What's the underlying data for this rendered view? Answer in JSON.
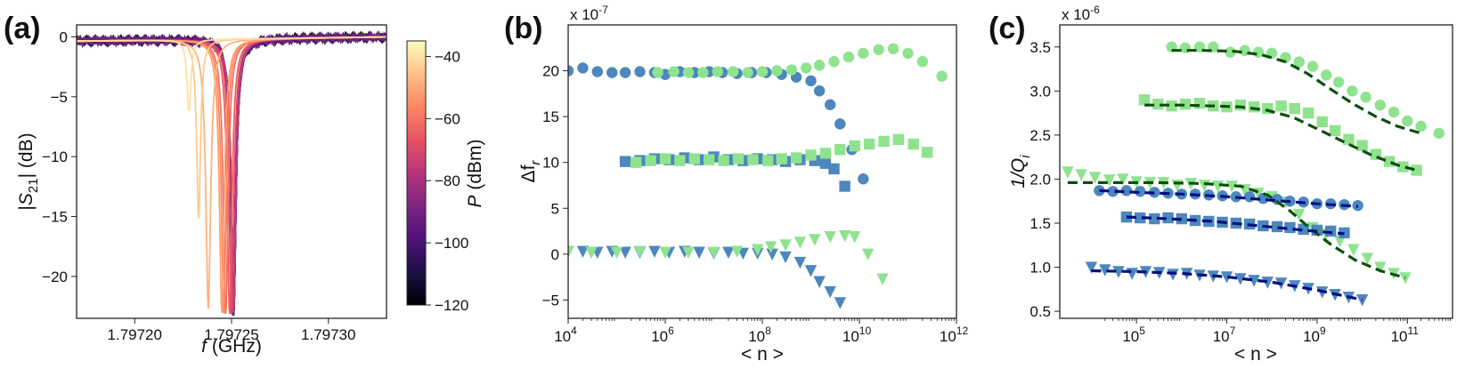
{
  "figure": {
    "panels": [
      {
        "id": "a",
        "label": "(a)"
      },
      {
        "id": "b",
        "label": "(b)",
        "multiplier": "x 10-7"
      },
      {
        "id": "c",
        "label": "(c)",
        "multiplier": "x 10-6"
      }
    ]
  },
  "colors": {
    "dark_blue": "#000f80",
    "steel_blue": "#4c87bd",
    "light_green": "#8fe38f",
    "dash_green": "#0d4f0d"
  },
  "chart_data": [
    {
      "panel": "a",
      "type": "line",
      "xlabel": "f (GHz)",
      "ylabel": "|S21| (dB)",
      "xlim": [
        1.79717,
        1.79733
      ],
      "ylim": [
        -23.5,
        1
      ],
      "x_ticks": [
        "1.79720",
        "1.79725",
        "1.79730"
      ],
      "y_ticks": [
        "0",
        "−5",
        "−10",
        "−15",
        "−20"
      ],
      "colorbar": {
        "label": "P (dBm)",
        "range": [
          -120,
          -35
        ],
        "ticks": [
          "−40",
          "−60",
          "−80",
          "−100",
          "−120"
        ],
        "colormap": "magma"
      },
      "series": [
        {
          "power": -120,
          "f0": 1.797251,
          "depth": -22.9,
          "width": 1.5e-06
        },
        {
          "power": -115,
          "f0": 1.797251,
          "depth": -22.9,
          "width": 1.5e-06
        },
        {
          "power": -110,
          "f0": 1.797251,
          "depth": -22.9,
          "width": 1.5e-06
        },
        {
          "power": -105,
          "f0": 1.797251,
          "depth": -22.9,
          "width": 1.5e-06
        },
        {
          "power": -100,
          "f0": 1.797251,
          "depth": -22.9,
          "width": 1.5e-06
        },
        {
          "power": -95,
          "f0": 1.797251,
          "depth": -22.9,
          "width": 1.5e-06
        },
        {
          "power": -90,
          "f0": 1.797251,
          "depth": -22.9,
          "width": 1.5e-06
        },
        {
          "power": -85,
          "f0": 1.797251,
          "depth": -22.9,
          "width": 1.5e-06
        },
        {
          "power": -80,
          "f0": 1.797251,
          "depth": -22.9,
          "width": 1.5e-06
        },
        {
          "power": -75,
          "f0": 1.797251,
          "depth": -22.9,
          "width": 1.5e-06
        },
        {
          "power": -70,
          "f0": 1.79725,
          "depth": -23.0,
          "width": 1.5e-06
        },
        {
          "power": -65,
          "f0": 1.797249,
          "depth": -23.0,
          "width": 1.5e-06
        },
        {
          "power": -60,
          "f0": 1.797247,
          "depth": -23.0,
          "width": 1.5e-06
        },
        {
          "power": -56,
          "f0": 1.797246,
          "depth": -22.9,
          "width": 1.5e-06
        },
        {
          "power": -52,
          "f0": 1.797245,
          "depth": -22.9,
          "width": 1.5e-06
        },
        {
          "power": -48,
          "f0": 1.797238,
          "depth": -22.5,
          "width": 1.5e-06
        },
        {
          "power": -44,
          "f0": 1.797233,
          "depth": -15.0,
          "width": 1.2e-06
        },
        {
          "power": -40,
          "f0": 1.797228,
          "depth": -6.0,
          "width": 1.2e-06
        }
      ]
    },
    {
      "panel": "b",
      "type": "scatter",
      "xlabel": "< n >",
      "ylabel": "Δf",
      "ylabel_sub": "r",
      "xscale": "log",
      "xlim": [
        10000,
        1000000000000
      ],
      "ylim": [
        -7,
        25
      ],
      "x_ticks": [
        {
          "base": "10",
          "exp": "4"
        },
        {
          "base": "10",
          "exp": "6"
        },
        {
          "base": "10",
          "exp": "8"
        },
        {
          "base": "10",
          "exp": "10"
        },
        {
          "base": "10",
          "exp": "12"
        }
      ],
      "y_ticks": [
        "−5",
        "0",
        "5",
        "10",
        "15",
        "20"
      ],
      "series": [
        {
          "color": "steel_blue",
          "marker": "circle",
          "x": [
            10000,
            20000,
            40000,
            80000,
            150000,
            300000,
            600000,
            1000000,
            2000000,
            4000000,
            8000000,
            15000000,
            30000000,
            60000000,
            120000000,
            250000000,
            500000000,
            1000000000,
            1500000000,
            2500000000,
            4000000000,
            7000000000,
            12000000000
          ],
          "y": [
            20,
            20.3,
            19.9,
            19.8,
            19.8,
            19.9,
            19.8,
            19.6,
            19.9,
            19.8,
            19.9,
            19.8,
            19.7,
            19.8,
            19.8,
            19.6,
            19.3,
            18.9,
            17.8,
            16.3,
            14.2,
            11.4,
            8.2
          ]
        },
        {
          "color": "light_green",
          "marker": "circle",
          "x": [
            700000,
            1500000,
            3000000,
            6000000,
            12000000,
            25000000,
            50000000,
            100000000,
            200000000,
            400000000,
            800000000,
            1500000000,
            3000000000,
            6000000000,
            12000000000,
            25000000000,
            50000000000,
            100000000000,
            200000000000,
            500000000000
          ],
          "y": [
            19.8,
            19.9,
            19.8,
            19.8,
            19.9,
            19.9,
            19.8,
            19.9,
            20.0,
            20.1,
            20.3,
            20.6,
            21.0,
            21.5,
            21.9,
            22.3,
            22.4,
            21.9,
            21.0,
            19.4
          ]
        },
        {
          "color": "steel_blue",
          "marker": "square",
          "x": [
            150000,
            300000,
            600000,
            1200000,
            2500000,
            5000000,
            10000000,
            20000000,
            40000000,
            80000000,
            160000000,
            300000000,
            600000000,
            1200000000,
            2000000000,
            3000000000,
            5000000000
          ],
          "y": [
            10.1,
            10.2,
            10.4,
            10.3,
            10.5,
            10.3,
            10.6,
            10.3,
            10.2,
            10.4,
            10.3,
            10.1,
            10.3,
            10.2,
            9.9,
            9.3,
            7.4
          ]
        },
        {
          "color": "light_green",
          "marker": "square",
          "x": [
            250000,
            500000,
            1000000,
            2000000,
            4000000,
            8000000,
            16000000,
            32000000,
            64000000,
            130000000,
            250000000,
            500000000,
            1000000000,
            2000000000,
            4000000000,
            8000000000,
            16000000000,
            32000000000,
            64000000000,
            130000000000,
            250000000000
          ],
          "y": [
            10.0,
            10.2,
            10.4,
            10.2,
            10.4,
            10.3,
            10.2,
            10.4,
            10.3,
            10.2,
            10.4,
            10.5,
            10.8,
            11.0,
            11.4,
            11.8,
            12.0,
            12.3,
            12.5,
            12.0,
            11.1
          ]
        },
        {
          "color": "steel_blue",
          "marker": "triangle",
          "x": [
            10000,
            20000,
            40000,
            80000,
            150000,
            300000,
            600000,
            1200000,
            2500000,
            5000000,
            10000000,
            20000000,
            40000000,
            80000000,
            160000000,
            300000000,
            600000000,
            1000000000,
            1500000000,
            2500000000,
            4000000000
          ],
          "y": [
            0.3,
            0.3,
            0.2,
            0.3,
            0.2,
            0.2,
            0.3,
            0.2,
            0.3,
            0.2,
            0.1,
            0.2,
            0.1,
            0.1,
            0.0,
            -0.3,
            -0.9,
            -1.8,
            -3.0,
            -4.1,
            -5.3
          ]
        },
        {
          "color": "light_green",
          "marker": "triangle",
          "x": [
            10000,
            30000,
            100000,
            300000,
            1000000,
            3000000,
            10000000,
            30000000,
            80000000,
            150000000,
            300000000,
            600000000,
            1200000000,
            2500000000,
            5000000000,
            8000000000,
            15000000000,
            30000000000
          ],
          "y": [
            0.3,
            0.2,
            0.2,
            0.3,
            0.2,
            0.2,
            0.2,
            0.3,
            0.5,
            0.8,
            1.0,
            1.3,
            1.6,
            1.9,
            2.0,
            1.9,
            0.0,
            -2.7
          ]
        }
      ]
    },
    {
      "panel": "c",
      "type": "scatter",
      "xlabel": "< n >",
      "ylabel": "1/Q",
      "ylabel_sub": "i",
      "xscale": "log",
      "xlim": [
        2000,
        1000000000000
      ],
      "ylim": [
        0.42,
        3.75
      ],
      "x_ticks": [
        {
          "base": "10",
          "exp": "5"
        },
        {
          "base": "10",
          "exp": "7"
        },
        {
          "base": "10",
          "exp": "9"
        },
        {
          "base": "10",
          "exp": "11"
        }
      ],
      "y_ticks": [
        "0.5",
        "1.0",
        "1.5",
        "2.0",
        "2.5",
        "3.0",
        "3.5"
      ],
      "series": [
        {
          "color": "light_green",
          "marker": "circle",
          "x": [
            600000,
            1200000,
            2500000,
            5000000,
            12000000,
            25000000,
            50000000,
            100000000,
            200000000,
            400000000,
            800000000,
            1600000000,
            3000000000,
            6000000000,
            12000000000,
            25000000000,
            50000000000,
            100000000000,
            200000000000,
            500000000000
          ],
          "y": [
            3.5,
            3.49,
            3.5,
            3.5,
            3.44,
            3.46,
            3.44,
            3.43,
            3.38,
            3.33,
            3.28,
            3.18,
            3.1,
            3.0,
            2.93,
            2.84,
            2.76,
            2.66,
            2.6,
            2.52
          ]
        },
        {
          "color": "light_green",
          "marker": "square",
          "x": [
            150000,
            300000,
            600000,
            1200000,
            2500000,
            5000000,
            10000000,
            20000000,
            40000000,
            80000000,
            160000000,
            320000000,
            640000000,
            1300000000,
            2500000000,
            5000000000,
            10000000000,
            20000000000,
            40000000000,
            80000000000,
            160000000000
          ],
          "y": [
            2.9,
            2.85,
            2.83,
            2.85,
            2.86,
            2.83,
            2.82,
            2.84,
            2.82,
            2.8,
            2.83,
            2.8,
            2.75,
            2.65,
            2.55,
            2.45,
            2.38,
            2.28,
            2.2,
            2.14,
            2.1
          ]
        },
        {
          "color": "light_green",
          "marker": "triangle",
          "x": [
            3000,
            6000,
            12000,
            25000,
            50000,
            100000,
            200000,
            400000,
            800000,
            1600000,
            3200000,
            6400000,
            13000000,
            25000000,
            50000000,
            100000000,
            200000000,
            400000000,
            800000000,
            1600000000,
            3200000000,
            6400000000,
            13000000000,
            25000000000,
            50000000000,
            90000000000
          ],
          "y": [
            2.08,
            2.05,
            2.02,
            1.99,
            2.0,
            1.97,
            1.96,
            1.96,
            1.93,
            1.95,
            1.93,
            1.92,
            1.92,
            1.88,
            1.84,
            1.8,
            1.74,
            1.6,
            1.45,
            1.38,
            1.3,
            1.2,
            1.1,
            1.0,
            0.93,
            0.88
          ]
        },
        {
          "color": "steel_blue",
          "marker": "circle",
          "x": [
            15000,
            30000,
            60000,
            120000,
            250000,
            500000,
            1000000,
            2000000,
            4000000,
            8000000,
            16000000,
            32000000,
            64000000,
            130000000,
            250000000,
            500000000,
            1000000000,
            2000000000,
            4000000000,
            8000000000
          ],
          "y": [
            1.87,
            1.86,
            1.87,
            1.86,
            1.85,
            1.84,
            1.83,
            1.83,
            1.82,
            1.81,
            1.8,
            1.8,
            1.78,
            1.77,
            1.75,
            1.74,
            1.72,
            1.72,
            1.71,
            1.7
          ]
        },
        {
          "color": "steel_blue",
          "marker": "square",
          "x": [
            60000,
            120000,
            250000,
            500000,
            1000000,
            2000000,
            4000000,
            8000000,
            16000000,
            32000000,
            64000000,
            130000000,
            250000000,
            500000000,
            1000000000,
            2000000000,
            4000000000
          ],
          "y": [
            1.57,
            1.56,
            1.55,
            1.56,
            1.55,
            1.53,
            1.52,
            1.51,
            1.5,
            1.49,
            1.47,
            1.46,
            1.45,
            1.43,
            1.42,
            1.41,
            1.39
          ]
        },
        {
          "color": "steel_blue",
          "marker": "triangle",
          "x": [
            10000,
            20000,
            40000,
            80000,
            160000,
            320000,
            640000,
            1300000,
            2500000,
            5000000,
            10000000,
            20000000,
            40000000,
            80000000,
            160000000,
            320000000,
            640000000,
            1300000000,
            2500000000,
            5000000000,
            10000000000
          ],
          "y": [
            1.0,
            0.97,
            0.95,
            0.93,
            0.95,
            0.94,
            0.92,
            0.93,
            0.91,
            0.9,
            0.89,
            0.87,
            0.85,
            0.83,
            0.82,
            0.79,
            0.76,
            0.72,
            0.69,
            0.66,
            0.63
          ]
        }
      ],
      "fits": [
        {
          "color": "dash_green",
          "x": [
            600000,
            3000000,
            15000000,
            60000000,
            200000000,
            600000000,
            2000000000,
            6000000000,
            20000000000,
            60000000000,
            200000000000
          ],
          "y": [
            3.46,
            3.46,
            3.45,
            3.41,
            3.33,
            3.2,
            3.02,
            2.86,
            2.71,
            2.6,
            2.52
          ]
        },
        {
          "color": "dash_green",
          "x": [
            150000,
            1000000,
            5000000,
            20000000,
            80000000,
            300000000,
            1000000000,
            4000000000,
            15000000000,
            60000000000,
            160000000000
          ],
          "y": [
            2.84,
            2.84,
            2.83,
            2.82,
            2.78,
            2.7,
            2.57,
            2.42,
            2.28,
            2.16,
            2.1
          ]
        },
        {
          "color": "dash_green",
          "x": [
            3000,
            30000,
            300000,
            3000000,
            20000000,
            80000000,
            250000000,
            700000000,
            2000000000,
            7000000000,
            25000000000,
            90000000000
          ],
          "y": [
            1.96,
            1.96,
            1.96,
            1.95,
            1.92,
            1.82,
            1.64,
            1.44,
            1.26,
            1.08,
            0.96,
            0.88
          ]
        },
        {
          "color": "dark_blue",
          "x": [
            15000,
            100000,
            1000000,
            10000000,
            100000000,
            1000000000,
            8000000000
          ],
          "y": [
            1.87,
            1.85,
            1.83,
            1.8,
            1.76,
            1.72,
            1.69
          ]
        },
        {
          "color": "dark_blue",
          "x": [
            60000,
            500000,
            5000000,
            50000000,
            500000000,
            4000000000
          ],
          "y": [
            1.57,
            1.55,
            1.52,
            1.47,
            1.42,
            1.38
          ]
        },
        {
          "color": "dark_blue",
          "x": [
            10000,
            100000,
            1000000,
            10000000,
            100000000,
            1000000000,
            10000000000
          ],
          "y": [
            0.96,
            0.95,
            0.93,
            0.89,
            0.83,
            0.74,
            0.63
          ]
        }
      ]
    }
  ]
}
